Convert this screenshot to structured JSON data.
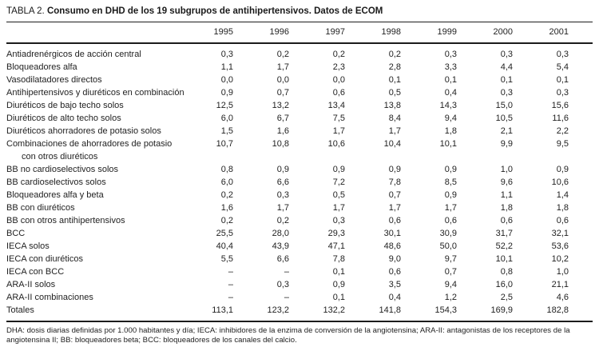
{
  "title": {
    "prefix": "TABLA 2.",
    "main": "Consumo en DHD de los 19 subgrupos de antihipertensivos. Datos de ECOM"
  },
  "table": {
    "year_headers": [
      "1995",
      "1996",
      "1997",
      "1998",
      "1999",
      "2000",
      "2001"
    ],
    "rows": [
      {
        "label": "Antiadrenérgicos de acción central",
        "values": [
          "0,3",
          "0,2",
          "0,2",
          "0,2",
          "0,3",
          "0,3",
          "0,3"
        ]
      },
      {
        "label": "Bloqueadores alfa",
        "values": [
          "1,1",
          "1,7",
          "2,3",
          "2,8",
          "3,3",
          "4,4",
          "5,4"
        ]
      },
      {
        "label": "Vasodilatadores directos",
        "values": [
          "0,0",
          "0,0",
          "0,0",
          "0,1",
          "0,1",
          "0,1",
          "0,1"
        ]
      },
      {
        "label": "Antihipertensivos y diuréticos en combinación",
        "values": [
          "0,9",
          "0,7",
          "0,6",
          "0,5",
          "0,4",
          "0,3",
          "0,3"
        ]
      },
      {
        "label": "Diuréticos de bajo techo solos",
        "values": [
          "12,5",
          "13,2",
          "13,4",
          "13,8",
          "14,3",
          "15,0",
          "15,6"
        ]
      },
      {
        "label": "Diuréticos de alto techo solos",
        "values": [
          "6,0",
          "6,7",
          "7,5",
          "8,4",
          "9,4",
          "10,5",
          "11,6"
        ]
      },
      {
        "label": "Diuréticos ahorradores de potasio solos",
        "values": [
          "1,5",
          "1,6",
          "1,7",
          "1,7",
          "1,8",
          "2,1",
          "2,2"
        ]
      },
      {
        "label": "Combinaciones de ahorradores de potasio",
        "label2": "con otros diuréticos",
        "values": [
          "10,7",
          "10,8",
          "10,6",
          "10,4",
          "10,1",
          "9,9",
          "9,5"
        ]
      },
      {
        "label": "BB no cardioselectivos solos",
        "values": [
          "0,8",
          "0,9",
          "0,9",
          "0,9",
          "0,9",
          "1,0",
          "0,9"
        ]
      },
      {
        "label": "BB cardioselectivos solos",
        "values": [
          "6,0",
          "6,6",
          "7,2",
          "7,8",
          "8,5",
          "9,6",
          "10,6"
        ]
      },
      {
        "label": "Bloqueadores alfa y beta",
        "values": [
          "0,2",
          "0,3",
          "0,5",
          "0,7",
          "0,9",
          "1,1",
          "1,4"
        ]
      },
      {
        "label": "BB con diuréticos",
        "values": [
          "1,6",
          "1,7",
          "1,7",
          "1,7",
          "1,7",
          "1,8",
          "1,8"
        ]
      },
      {
        "label": "BB con otros antihipertensivos",
        "values": [
          "0,2",
          "0,2",
          "0,3",
          "0,6",
          "0,6",
          "0,6",
          "0,6"
        ]
      },
      {
        "label": "BCC",
        "values": [
          "25,5",
          "28,0",
          "29,3",
          "30,1",
          "30,9",
          "31,7",
          "32,1"
        ]
      },
      {
        "label": "IECA solos",
        "values": [
          "40,4",
          "43,9",
          "47,1",
          "48,6",
          "50,0",
          "52,2",
          "53,6"
        ]
      },
      {
        "label": "IECA con diuréticos",
        "values": [
          "5,5",
          "6,6",
          "7,8",
          "9,0",
          "9,7",
          "10,1",
          "10,2"
        ]
      },
      {
        "label": "IECA con BCC",
        "values": [
          "–",
          "–",
          "0,1",
          "0,6",
          "0,7",
          "0,8",
          "1,0"
        ]
      },
      {
        "label": "ARA-II solos",
        "values": [
          "–",
          "0,3",
          "0,9",
          "3,5",
          "9,4",
          "16,0",
          "21,1"
        ]
      },
      {
        "label": "ARA-II combinaciones",
        "values": [
          "–",
          "–",
          "0,1",
          "0,4",
          "1,2",
          "2,5",
          "4,6"
        ]
      },
      {
        "label": "Totales",
        "values": [
          "113,1",
          "123,2",
          "132,2",
          "141,8",
          "154,3",
          "169,9",
          "182,8"
        ]
      }
    ]
  },
  "footnote": "DHA: dosis diarias definidas por 1.000 habitantes y día; IECA: inhibidores de la enzima de conversión de la angiotensina; ARA-II: antagonistas de los receptores de la angiotensina II; BB: bloqueadores beta; BCC: bloqueadores de los canales del calcio."
}
